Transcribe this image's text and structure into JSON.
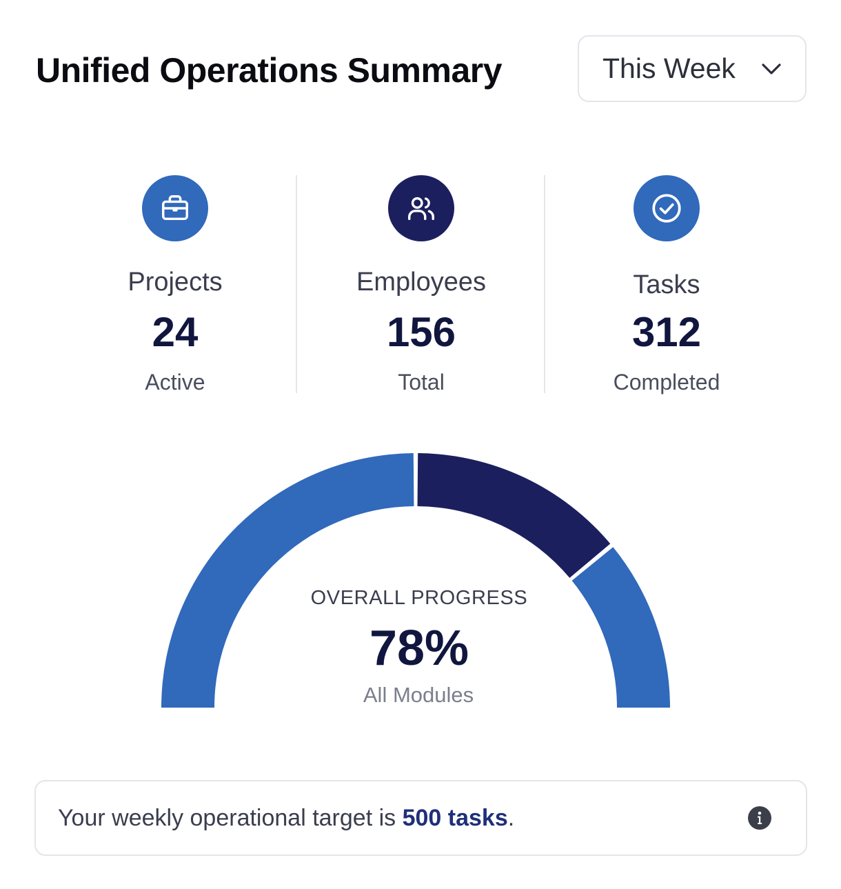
{
  "header": {
    "title": "Unified Operations Summary",
    "period_select": {
      "selected": "This Week",
      "icon": "chevron-down-icon"
    }
  },
  "stats": [
    {
      "label": "Projects",
      "value": "24",
      "sub": "Active",
      "icon": "briefcase-icon",
      "color": "#3169bb"
    },
    {
      "label": "Employees",
      "value": "156",
      "sub": "Total",
      "icon": "users-icon",
      "color": "#1c1f5e"
    },
    {
      "label": "Tasks",
      "value": "312",
      "sub": "Completed",
      "icon": "check-circle-icon",
      "color": "#3169bb"
    }
  ],
  "chart_data": {
    "type": "gauge",
    "title": "OVERALL PROGRESS",
    "value_label": "78%",
    "value": 78,
    "subtitle": "All Modules",
    "segments": [
      {
        "fraction": 0.5,
        "color": "#3169bb"
      },
      {
        "fraction": 0.28,
        "color": "#1c1f5e"
      },
      {
        "fraction": 0.22,
        "color": "#3169bb"
      }
    ]
  },
  "note": {
    "prefix": "Your weekly operational target is ",
    "highlight": "500 tasks",
    "suffix": ".",
    "icon": "info-icon"
  },
  "colors": {
    "primary": "#3169bb",
    "navy": "#1c1f5e",
    "border": "#e3e5ea"
  }
}
